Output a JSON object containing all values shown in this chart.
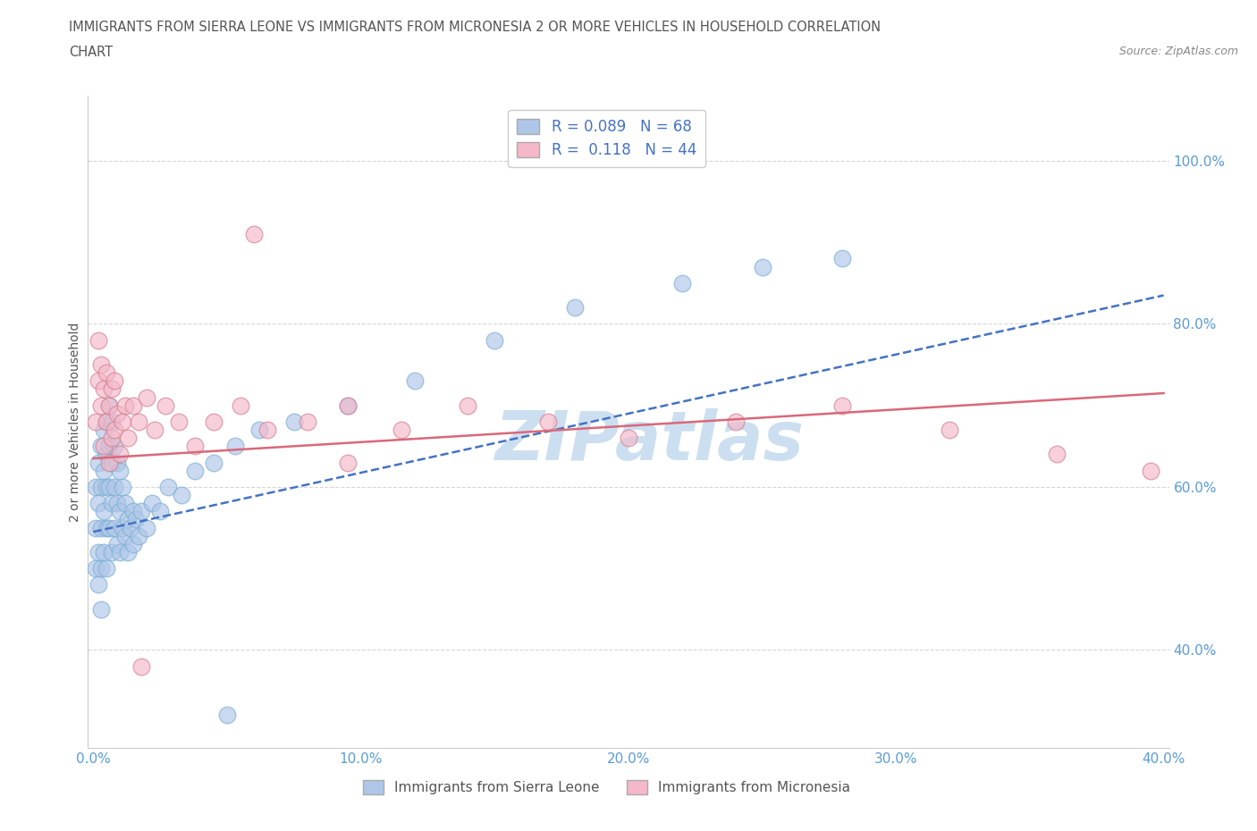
{
  "title_line1": "IMMIGRANTS FROM SIERRA LEONE VS IMMIGRANTS FROM MICRONESIA 2 OR MORE VEHICLES IN HOUSEHOLD CORRELATION",
  "title_line2": "CHART",
  "source_text": "Source: ZipAtlas.com",
  "ylabel": "2 or more Vehicles in Household",
  "xlim": [
    -0.002,
    0.402
  ],
  "ylim": [
    0.28,
    1.08
  ],
  "xtick_vals": [
    0.0,
    0.1,
    0.2,
    0.3,
    0.4
  ],
  "xtick_labels": [
    "0.0%",
    "10.0%",
    "20.0%",
    "30.0%",
    "40.0%"
  ],
  "ytick_vals": [
    0.4,
    0.6,
    0.8,
    1.0
  ],
  "ytick_labels": [
    "40.0%",
    "60.0%",
    "80.0%",
    "100.0%"
  ],
  "sierra_leone_color": "#aec6e8",
  "sierra_leone_edge": "#7bafd4",
  "micronesia_color": "#f4b8c8",
  "micronesia_edge": "#d48090",
  "sierra_leone_line_color": "#4472c4",
  "micronesia_line_color": "#d9687a",
  "background_color": "#ffffff",
  "watermark_text": "ZIPatlas",
  "watermark_color": "#ccdff0",
  "grid_color": "#cccccc",
  "tick_color": "#5b9bd5",
  "ylabel_color": "#555555",
  "title_color": "#555555",
  "source_color": "#888888",
  "legend_text_color": "#4472c4",
  "bottom_legend_color": "#555555",
  "sierra_leone_x": [
    0.001,
    0.001,
    0.001,
    0.002,
    0.002,
    0.002,
    0.002,
    0.003,
    0.003,
    0.003,
    0.003,
    0.003,
    0.004,
    0.004,
    0.004,
    0.004,
    0.005,
    0.005,
    0.005,
    0.005,
    0.005,
    0.006,
    0.006,
    0.006,
    0.006,
    0.007,
    0.007,
    0.007,
    0.007,
    0.008,
    0.008,
    0.008,
    0.009,
    0.009,
    0.009,
    0.01,
    0.01,
    0.01,
    0.011,
    0.011,
    0.012,
    0.012,
    0.013,
    0.013,
    0.014,
    0.015,
    0.015,
    0.016,
    0.017,
    0.018,
    0.02,
    0.022,
    0.025,
    0.028,
    0.033,
    0.038,
    0.045,
    0.053,
    0.062,
    0.075,
    0.095,
    0.12,
    0.15,
    0.18,
    0.22,
    0.25,
    0.28,
    0.05
  ],
  "sierra_leone_y": [
    0.6,
    0.55,
    0.5,
    0.63,
    0.58,
    0.52,
    0.48,
    0.65,
    0.6,
    0.55,
    0.5,
    0.45,
    0.67,
    0.62,
    0.57,
    0.52,
    0.68,
    0.64,
    0.6,
    0.55,
    0.5,
    0.7,
    0.65,
    0.6,
    0.55,
    0.68,
    0.63,
    0.58,
    0.52,
    0.65,
    0.6,
    0.55,
    0.63,
    0.58,
    0.53,
    0.62,
    0.57,
    0.52,
    0.6,
    0.55,
    0.58,
    0.54,
    0.56,
    0.52,
    0.55,
    0.57,
    0.53,
    0.56,
    0.54,
    0.57,
    0.55,
    0.58,
    0.57,
    0.6,
    0.59,
    0.62,
    0.63,
    0.65,
    0.67,
    0.68,
    0.7,
    0.73,
    0.78,
    0.82,
    0.85,
    0.87,
    0.88,
    0.32
  ],
  "micronesia_x": [
    0.001,
    0.002,
    0.002,
    0.003,
    0.003,
    0.004,
    0.004,
    0.005,
    0.005,
    0.006,
    0.006,
    0.007,
    0.007,
    0.008,
    0.008,
    0.009,
    0.01,
    0.011,
    0.012,
    0.013,
    0.015,
    0.017,
    0.02,
    0.023,
    0.027,
    0.032,
    0.038,
    0.045,
    0.055,
    0.065,
    0.08,
    0.095,
    0.115,
    0.14,
    0.17,
    0.2,
    0.24,
    0.28,
    0.32,
    0.36,
    0.395,
    0.06,
    0.095,
    0.018
  ],
  "micronesia_y": [
    0.68,
    0.73,
    0.78,
    0.7,
    0.75,
    0.65,
    0.72,
    0.68,
    0.74,
    0.63,
    0.7,
    0.66,
    0.72,
    0.67,
    0.73,
    0.69,
    0.64,
    0.68,
    0.7,
    0.66,
    0.7,
    0.68,
    0.71,
    0.67,
    0.7,
    0.68,
    0.65,
    0.68,
    0.7,
    0.67,
    0.68,
    0.7,
    0.67,
    0.7,
    0.68,
    0.66,
    0.68,
    0.7,
    0.67,
    0.64,
    0.62,
    0.91,
    0.63,
    0.38
  ],
  "sl_line_x0": 0.0,
  "sl_line_y0": 0.545,
  "sl_line_x1": 0.4,
  "sl_line_y1": 0.835,
  "mc_line_x0": 0.0,
  "mc_line_y0": 0.635,
  "mc_line_x1": 0.4,
  "mc_line_y1": 0.715
}
